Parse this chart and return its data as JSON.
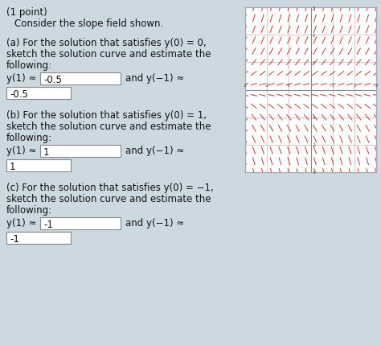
{
  "bg_color": "#cdd9e0",
  "title": "(1 point)",
  "main_text": "Consider the slope field shown.",
  "part_a_line1": "(a) For the solution that satisfies y(0) = 0,",
  "part_a_line2": "sketch the solution curve and estimate the",
  "part_a_line3": "following:",
  "part_a_label": "y(1) ≈",
  "part_a_val1": "-0.5",
  "part_a_and": "and y(−1) ≈",
  "part_a_val2": "-0.5",
  "part_b_line1": "(b) For the solution that satisfies y(0) = 1,",
  "part_b_line2": "sketch the solution curve and estimate the",
  "part_b_line3": "following:",
  "part_b_label": "y(1) ≈",
  "part_b_val1": "1",
  "part_b_and": "and y(−1) ≈",
  "part_b_val2": "1",
  "part_c_line1": "(c) For the solution that satisfies y(0) = −1,",
  "part_c_line2": "sketch the solution curve and estimate the",
  "part_c_line3": "following:",
  "part_c_label": "y(1) ≈",
  "part_c_val1": "-1",
  "part_c_and": "and y(−1) ≈",
  "part_c_val2": "-1",
  "sf_line_color": "#c0392b",
  "sf_bg": "#ffffff",
  "sf_border": "#aaaaaa",
  "sf_grid_color": "#ddaaaa",
  "sf_axis_color": "#888888",
  "sf_tick_color": "#333333",
  "box_edge": "#888888",
  "box_face": "#ffffff",
  "text_color": "#111111"
}
